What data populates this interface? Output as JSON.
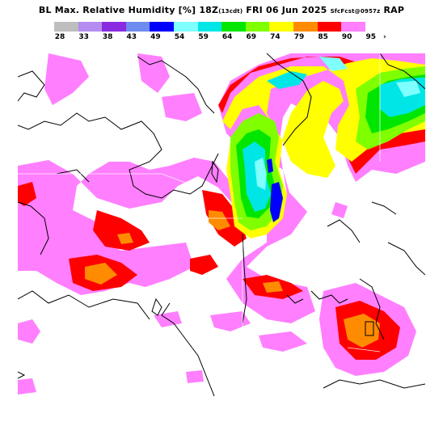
{
  "header": {
    "product": "BL Max. Relative Humidity",
    "units": "[%]",
    "valid_time": "18Z",
    "local_time": "(13cdt)",
    "date": "FRI 06 Jun 2025",
    "forecast": "SfcFcst@0957z",
    "model": "RAP"
  },
  "legend": {
    "labels": [
      "28",
      "33",
      "38",
      "43",
      "49",
      "54",
      "59",
      "64",
      "69",
      "74",
      "79",
      "85",
      "90",
      "95"
    ],
    "colors": [
      "#bebebe",
      "#b58cf0",
      "#8a2be2",
      "#6e8cf0",
      "#0000ff",
      "#7fffff",
      "#00e6e6",
      "#00e600",
      "#7fff00",
      "#ffff00",
      "#ff8c00",
      "#ff0000",
      "#ff7fff"
    ],
    "more_arrow": "›"
  },
  "map_colors": {
    "pink": "#ff7fff",
    "red": "#ff0000",
    "orange": "#ff8c00",
    "yellow": "#ffff00",
    "lime": "#7fff00",
    "green": "#00e600",
    "cyan": "#00e6e6",
    "light_cyan": "#7fffff",
    "blue": "#0000ff",
    "boundary": "#000000"
  }
}
